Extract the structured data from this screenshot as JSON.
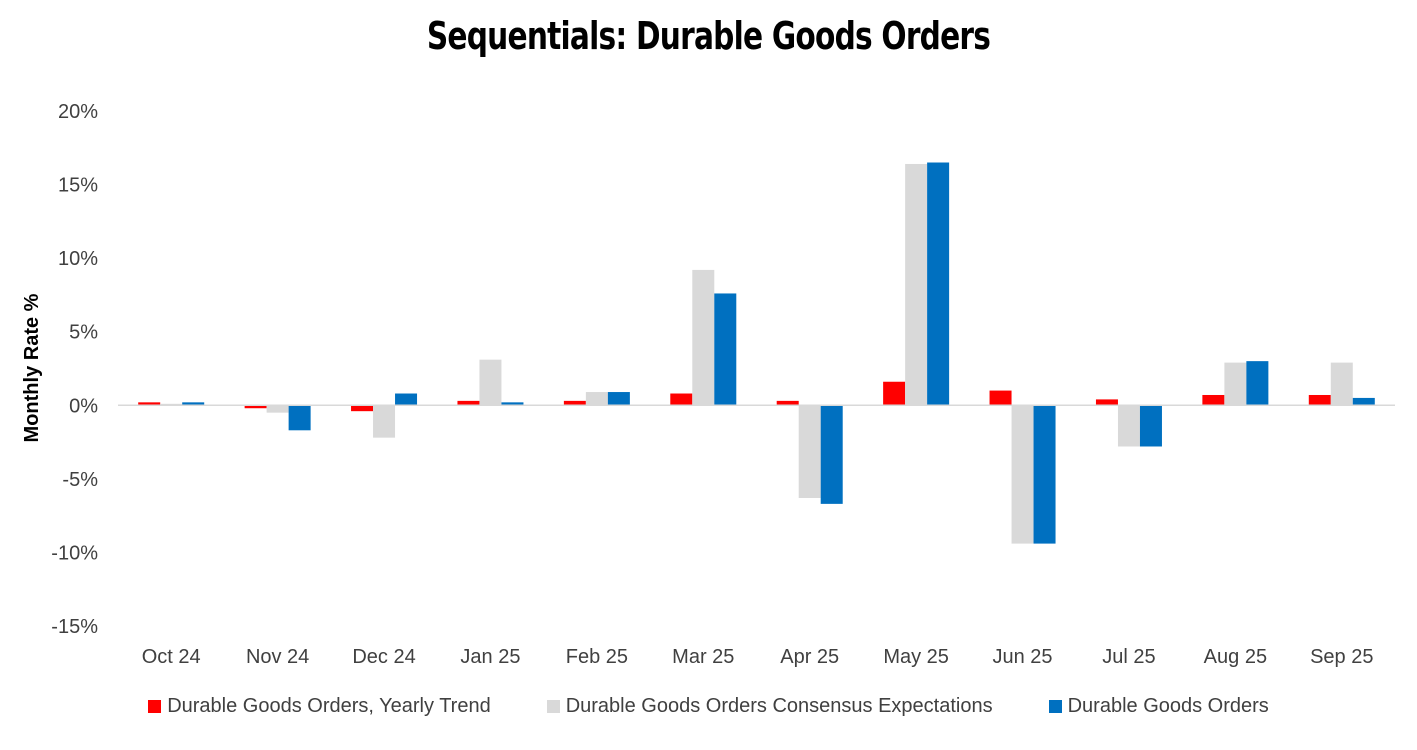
{
  "chart_data": {
    "type": "bar",
    "title": "Sequentials: Durable Goods Orders",
    "xlabel": "",
    "ylabel": "Monthly Rate %",
    "ylim": [
      -15,
      20
    ],
    "yticks": [
      -15,
      -10,
      -5,
      0,
      5,
      10,
      15,
      20
    ],
    "ytick_labels": [
      "-15%",
      "-10%",
      "-5%",
      "0%",
      "5%",
      "10%",
      "15%",
      "20%"
    ],
    "grid": false,
    "legend_position": "bottom",
    "categories": [
      "Oct 24",
      "Nov 24",
      "Dec 24",
      "Jan 25",
      "Feb 25",
      "Mar 25",
      "Apr 25",
      "May 25",
      "Jun 25",
      "Jul 25",
      "Aug 25",
      "Sep 25"
    ],
    "series": [
      {
        "name": "Durable Goods Orders, Yearly Trend",
        "color": "#ff0000",
        "values": [
          0.2,
          -0.2,
          -0.4,
          0.3,
          0.3,
          0.8,
          0.3,
          1.6,
          1.0,
          0.4,
          0.7,
          0.7
        ]
      },
      {
        "name": "Durable Goods Orders Consensus Expectations",
        "color": "#d9d9d9",
        "values": [
          0.1,
          -0.5,
          -2.2,
          3.1,
          0.9,
          9.2,
          -6.3,
          16.4,
          -9.4,
          -2.8,
          2.9,
          2.9
        ]
      },
      {
        "name": "Durable Goods Orders",
        "color": "#0070c0",
        "values": [
          0.2,
          -1.7,
          0.8,
          0.2,
          0.9,
          7.6,
          -6.7,
          16.5,
          -9.4,
          -2.8,
          3.0,
          0.5
        ]
      }
    ]
  }
}
